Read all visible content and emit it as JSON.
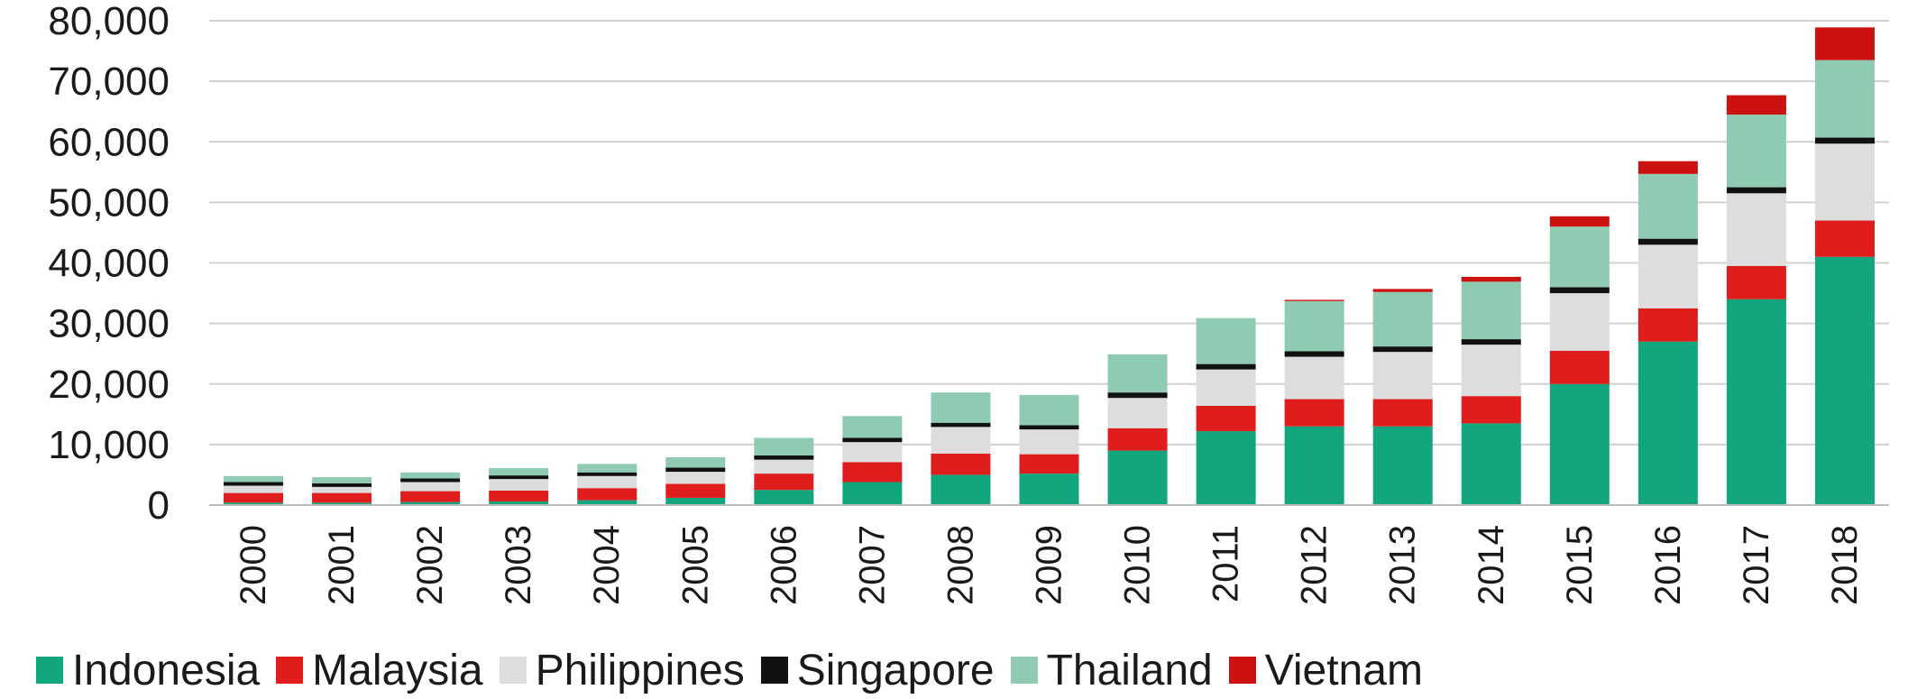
{
  "chart_data": {
    "type": "bar",
    "stacked": true,
    "categories": [
      "2000",
      "2001",
      "2002",
      "2003",
      "2004",
      "2005",
      "2006",
      "2007",
      "2008",
      "2009",
      "2010",
      "2011",
      "2012",
      "2013",
      "2014",
      "2015",
      "2016",
      "2017",
      "2018"
    ],
    "series": [
      {
        "name": "Indonesia",
        "color": "#12a67e",
        "values": [
          400,
          400,
          500,
          600,
          800,
          1200,
          2500,
          3800,
          5000,
          5200,
          9000,
          12200,
          13000,
          13000,
          13500,
          20000,
          27000,
          34000,
          41000
        ]
      },
      {
        "name": "Malaysia",
        "color": "#e01d1d",
        "values": [
          1600,
          1600,
          1800,
          1800,
          2000,
          2300,
          2700,
          3300,
          3500,
          3200,
          3700,
          4200,
          4500,
          4500,
          4500,
          5500,
          5500,
          5500,
          6000
        ]
      },
      {
        "name": "Philippines",
        "color": "#dddddd",
        "values": [
          1200,
          1000,
          1500,
          1900,
          2000,
          2000,
          2300,
          3300,
          4400,
          4100,
          5000,
          6000,
          7000,
          7800,
          8500,
          9500,
          10500,
          12000,
          12700
        ]
      },
      {
        "name": "Singapore",
        "color": "#111111",
        "values": [
          600,
          600,
          600,
          600,
          600,
          700,
          700,
          700,
          700,
          700,
          900,
          900,
          900,
          900,
          900,
          1000,
          1000,
          1000,
          1000
        ]
      },
      {
        "name": "Thailand",
        "color": "#8fcbb3",
        "values": [
          1000,
          1000,
          1000,
          1200,
          1400,
          1700,
          2900,
          3600,
          5000,
          5000,
          6300,
          7600,
          8300,
          9000,
          9500,
          10000,
          10700,
          12000,
          12800
        ]
      },
      {
        "name": "Vietnam",
        "color": "#cc1111",
        "values": [
          0,
          0,
          0,
          0,
          0,
          0,
          0,
          0,
          0,
          0,
          0,
          0,
          200,
          500,
          800,
          1700,
          2100,
          3200,
          5400
        ]
      }
    ],
    "yticks": [
      "0",
      "10,000",
      "20,000",
      "30,000",
      "40,000",
      "50,000",
      "60,000",
      "70,000",
      "80,000"
    ],
    "ylim": [
      0,
      80000
    ],
    "grid": true,
    "legend_position": "bottom"
  }
}
